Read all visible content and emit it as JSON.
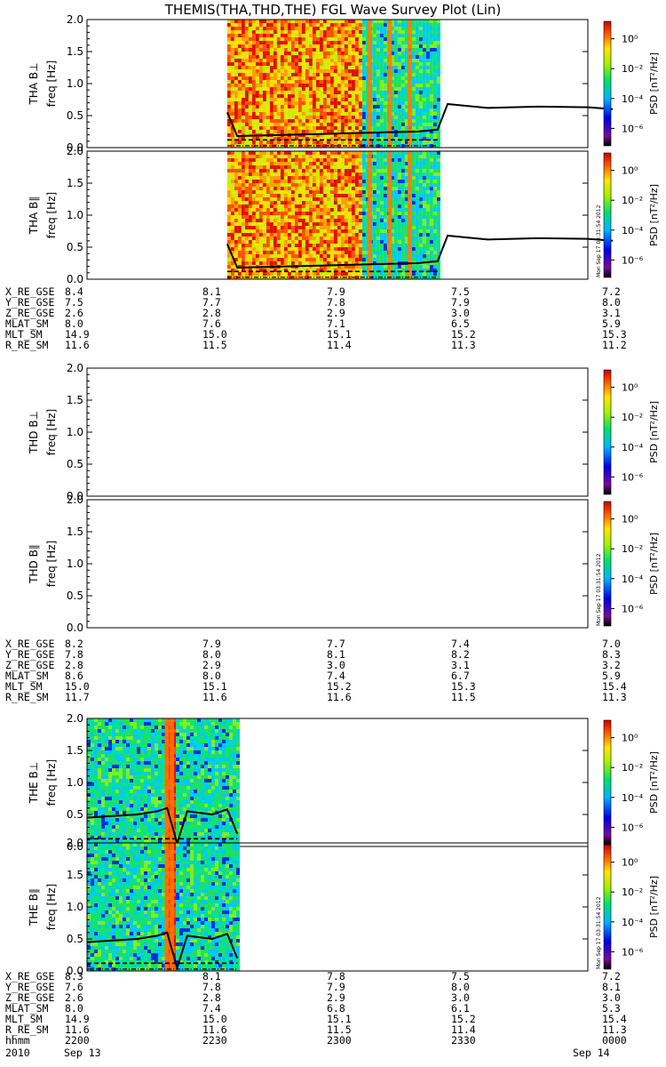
{
  "title": "THEMIS(THA,THD,THE) FGL Wave Survey Plot (Lin)",
  "chart_data": {
    "type": "heatmap",
    "colorbar": {
      "label": "PSD [nT²/Hz]",
      "ticks": [
        "10⁰",
        "10⁻²",
        "10⁻⁴",
        "10⁻⁶"
      ],
      "scale": "log",
      "colormap": "rainbow (black → purple → blue → cyan → green → yellow → red)"
    },
    "timestamp": "Mon Sep 17 03:31:54 2012",
    "yticks": [
      "0.0",
      "0.5",
      "1.0",
      "1.5",
      "2.0"
    ],
    "ylim": [
      0,
      2.0
    ],
    "panels": [
      {
        "probe": "THA",
        "label": "THA B⊥",
        "ylabel": "freq [Hz]",
        "data_range": [
          0.28,
          0.7
        ],
        "line": [
          [
            0.28,
            0.55
          ],
          [
            0.3,
            0.18
          ],
          [
            0.4,
            0.2
          ],
          [
            0.5,
            0.22
          ],
          [
            0.6,
            0.24
          ],
          [
            0.66,
            0.25
          ],
          [
            0.7,
            0.28
          ],
          [
            0.72,
            0.68
          ],
          [
            0.8,
            0.62
          ],
          [
            0.9,
            0.64
          ],
          [
            1.0,
            0.63
          ],
          [
            1.05,
            0.6
          ]
        ]
      },
      {
        "probe": "THA",
        "label": "THA B∥",
        "ylabel": "freq [Hz]",
        "data_range": [
          0.28,
          0.7
        ],
        "line": [
          [
            0.28,
            0.55
          ],
          [
            0.3,
            0.18
          ],
          [
            0.4,
            0.2
          ],
          [
            0.5,
            0.22
          ],
          [
            0.6,
            0.24
          ],
          [
            0.66,
            0.25
          ],
          [
            0.7,
            0.28
          ],
          [
            0.72,
            0.68
          ],
          [
            0.8,
            0.62
          ],
          [
            0.9,
            0.64
          ],
          [
            1.0,
            0.63
          ],
          [
            1.05,
            0.6
          ]
        ]
      },
      {
        "probe": "THD",
        "label": "THD B⊥",
        "ylabel": "freq [Hz]",
        "data_range": null,
        "line": []
      },
      {
        "probe": "THD",
        "label": "THD B∥",
        "ylabel": "freq [Hz]",
        "data_range": null,
        "line": []
      },
      {
        "probe": "THE",
        "label": "THE B⊥",
        "ylabel": "freq [Hz]",
        "data_range": [
          0.0,
          0.3
        ],
        "line": [
          [
            0.0,
            0.45
          ],
          [
            0.1,
            0.5
          ],
          [
            0.14,
            0.55
          ],
          [
            0.16,
            0.6
          ],
          [
            0.18,
            0.05
          ],
          [
            0.2,
            0.55
          ],
          [
            0.25,
            0.5
          ],
          [
            0.28,
            0.58
          ],
          [
            0.3,
            0.2
          ]
        ]
      },
      {
        "probe": "THE",
        "label": "THE B∥",
        "ylabel": "freq [Hz]",
        "data_range": [
          0.0,
          0.3
        ],
        "line": [
          [
            0.0,
            0.45
          ],
          [
            0.1,
            0.5
          ],
          [
            0.14,
            0.55
          ],
          [
            0.16,
            0.6
          ],
          [
            0.18,
            0.05
          ],
          [
            0.2,
            0.55
          ],
          [
            0.25,
            0.5
          ],
          [
            0.28,
            0.58
          ],
          [
            0.3,
            0.2
          ]
        ]
      }
    ],
    "ephemeris": [
      {
        "probe": "THA",
        "rows": [
          {
            "label": "X_RE_GSE",
            "values": [
              "8.4",
              "8.1",
              "7.9",
              "7.5",
              "7.2"
            ]
          },
          {
            "label": "Y_RE_GSE",
            "values": [
              "7.5",
              "7.7",
              "7.8",
              "7.9",
              "8.0"
            ]
          },
          {
            "label": "Z_RE_GSE",
            "values": [
              "2.6",
              "2.8",
              "2.9",
              "3.0",
              "3.1"
            ]
          },
          {
            "label": "MLAT_SM",
            "values": [
              "8.0",
              "7.6",
              "7.1",
              "6.5",
              "5.9"
            ]
          },
          {
            "label": "MLT_SM",
            "values": [
              "14.9",
              "15.0",
              "15.1",
              "15.2",
              "15.3"
            ]
          },
          {
            "label": "R_RE_SM",
            "values": [
              "11.6",
              "11.5",
              "11.4",
              "11.3",
              "11.2"
            ]
          }
        ]
      },
      {
        "probe": "THD",
        "rows": [
          {
            "label": "X_RE_GSE",
            "values": [
              "8.2",
              "7.9",
              "7.7",
              "7.4",
              "7.0"
            ]
          },
          {
            "label": "Y_RE_GSE",
            "values": [
              "7.8",
              "8.0",
              "8.1",
              "8.2",
              "8.3"
            ]
          },
          {
            "label": "Z_RE_GSE",
            "values": [
              "2.8",
              "2.9",
              "3.0",
              "3.1",
              "3.2"
            ]
          },
          {
            "label": "MLAT_SM",
            "values": [
              "8.6",
              "8.0",
              "7.4",
              "6.7",
              "5.9"
            ]
          },
          {
            "label": "MLT_SM",
            "values": [
              "15.0",
              "15.1",
              "15.2",
              "15.3",
              "15.4"
            ]
          },
          {
            "label": "R_RE_SM",
            "values": [
              "11.7",
              "11.6",
              "11.6",
              "11.5",
              "11.3"
            ]
          }
        ]
      },
      {
        "probe": "THE",
        "rows": [
          {
            "label": "X_RE_GSE",
            "values": [
              "8.3",
              "8.1",
              "7.8",
              "7.5",
              "7.2"
            ]
          },
          {
            "label": "Y_RE_GSE",
            "values": [
              "7.6",
              "7.8",
              "7.9",
              "8.0",
              "8.1"
            ]
          },
          {
            "label": "Z_RE_GSE",
            "values": [
              "2.6",
              "2.8",
              "2.9",
              "3.0",
              "3.0"
            ]
          },
          {
            "label": "MLAT_SM",
            "values": [
              "8.0",
              "7.4",
              "6.8",
              "6.1",
              "5.3"
            ]
          },
          {
            "label": "MLT_SM",
            "values": [
              "14.9",
              "15.0",
              "15.1",
              "15.2",
              "15.4"
            ]
          },
          {
            "label": "R_RE_SM",
            "values": [
              "11.6",
              "11.6",
              "11.5",
              "11.4",
              "11.3"
            ]
          },
          {
            "label": "hhmm",
            "values": [
              "2200",
              "2230",
              "2300",
              "2330",
              "0000"
            ]
          }
        ]
      }
    ],
    "date_row": {
      "label": "2010",
      "start": "Sep 13",
      "end": "Sep 14"
    }
  }
}
